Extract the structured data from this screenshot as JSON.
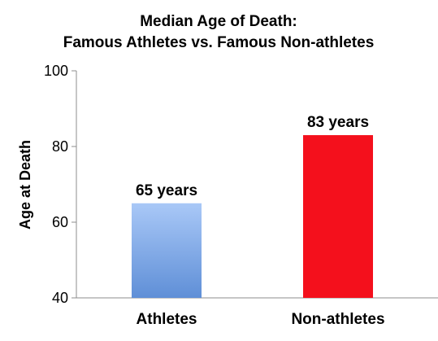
{
  "chart_data": {
    "type": "bar",
    "title": [
      "Median Age of Death:",
      "Famous Athletes vs. Famous Non-athletes"
    ],
    "xlabel": "",
    "ylabel": "Age at Death",
    "ylim": [
      40,
      100
    ],
    "yticks": [
      40,
      60,
      80,
      100
    ],
    "grid": false,
    "categories": [
      "Athletes",
      "Non-athletes"
    ],
    "values": [
      65,
      83
    ],
    "data_labels": [
      "65 years",
      "83 years"
    ],
    "colors": {
      "athletes_top": "#a9c8f7",
      "athletes_bottom": "#5f8fd7",
      "non_athletes": "#f4101c",
      "axis": "#8c8c8c"
    }
  }
}
